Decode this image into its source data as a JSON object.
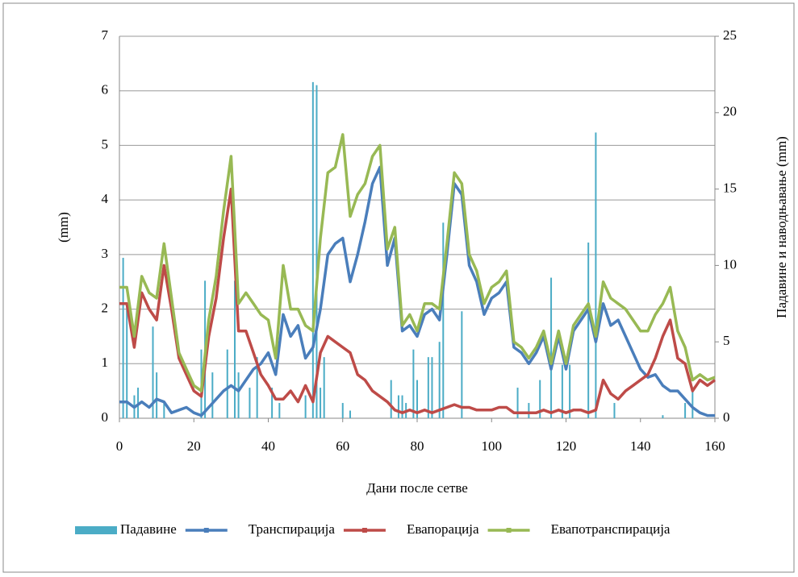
{
  "chart_data": {
    "type": "line",
    "x_label": "Дани после сетве",
    "y_label": "(mm)",
    "y2_label": "Падавине и наводњавање (mm)",
    "xlim": [
      0,
      160
    ],
    "xticks": [
      0,
      20,
      40,
      60,
      80,
      100,
      120,
      140,
      160
    ],
    "ylim": [
      0,
      7
    ],
    "yticks": [
      0,
      1,
      2,
      3,
      4,
      5,
      6,
      7
    ],
    "y2lim": [
      0,
      25
    ],
    "y2ticks": [
      0,
      5,
      10,
      15,
      20,
      25
    ],
    "grid": true,
    "legend": "bottom",
    "x": [
      0,
      2,
      4,
      6,
      8,
      10,
      12,
      14,
      16,
      18,
      20,
      22,
      24,
      26,
      28,
      30,
      32,
      34,
      36,
      38,
      40,
      42,
      44,
      46,
      48,
      50,
      52,
      54,
      56,
      58,
      60,
      62,
      64,
      66,
      68,
      70,
      72,
      74,
      76,
      78,
      80,
      82,
      84,
      86,
      88,
      90,
      92,
      94,
      96,
      98,
      100,
      102,
      104,
      106,
      108,
      110,
      112,
      114,
      116,
      118,
      120,
      122,
      124,
      126,
      128,
      130,
      132,
      134,
      136,
      138,
      140,
      142,
      144,
      146,
      148,
      150,
      152,
      154,
      156,
      158,
      160
    ],
    "series": [
      {
        "name": "Падавине",
        "color": "#4bacc6",
        "type": "bar",
        "axis": "y2",
        "x": [
          1,
          2,
          4,
          5,
          9,
          10,
          12,
          22,
          23,
          25,
          29,
          31,
          32,
          35,
          37,
          41,
          43,
          50,
          52,
          53,
          54,
          55,
          60,
          62,
          73,
          75,
          76,
          77,
          79,
          80,
          83,
          84,
          86,
          87,
          92,
          107,
          110,
          113,
          116,
          119,
          121,
          126,
          128,
          133,
          146,
          152,
          154
        ],
        "values": [
          10.5,
          7.5,
          1.5,
          2,
          6,
          3,
          1,
          4.5,
          9,
          3,
          4.5,
          9,
          3,
          2,
          4,
          2,
          1,
          1.5,
          22,
          21.8,
          2,
          4,
          1,
          0.5,
          2.5,
          1.5,
          1.5,
          1,
          4.5,
          2.5,
          4,
          4,
          5,
          12.8,
          7,
          2,
          1,
          2.5,
          9.2,
          3.5,
          3.5,
          11.5,
          18.7,
          1,
          0.2,
          1,
          2
        ]
      },
      {
        "name": "Транспирација",
        "color": "#4a7ebb",
        "values": [
          0.3,
          0.3,
          0.2,
          0.3,
          0.2,
          0.35,
          0.3,
          0.1,
          0.15,
          0.2,
          0.1,
          0.05,
          0.2,
          0.35,
          0.5,
          0.6,
          0.5,
          0.7,
          0.9,
          1.0,
          1.2,
          0.8,
          1.9,
          1.5,
          1.7,
          1.1,
          1.3,
          2.0,
          3.0,
          3.2,
          3.3,
          2.5,
          3.0,
          3.6,
          4.3,
          4.6,
          2.8,
          3.3,
          1.6,
          1.7,
          1.5,
          1.9,
          2.0,
          1.8,
          3.0,
          4.3,
          4.1,
          2.8,
          2.5,
          1.9,
          2.2,
          2.3,
          2.5,
          1.3,
          1.2,
          1.0,
          1.2,
          1.5,
          0.9,
          1.5,
          0.9,
          1.6,
          1.8,
          2.0,
          1.4,
          2.1,
          1.7,
          1.8,
          1.5,
          1.2,
          0.9,
          0.75,
          0.8,
          0.6,
          0.5,
          0.5,
          0.35,
          0.2,
          0.1,
          0.05,
          0.05
        ]
      },
      {
        "name": "Евапорација",
        "color": "#be4b48",
        "values": [
          2.1,
          2.1,
          1.3,
          2.3,
          2.0,
          1.8,
          2.8,
          2.0,
          1.1,
          0.8,
          0.5,
          0.4,
          1.5,
          2.2,
          3.3,
          4.2,
          1.6,
          1.6,
          1.2,
          0.8,
          0.6,
          0.35,
          0.35,
          0.5,
          0.3,
          0.6,
          0.3,
          1.2,
          1.5,
          1.4,
          1.3,
          1.2,
          0.8,
          0.7,
          0.5,
          0.4,
          0.3,
          0.15,
          0.1,
          0.15,
          0.1,
          0.15,
          0.1,
          0.15,
          0.2,
          0.25,
          0.2,
          0.2,
          0.15,
          0.15,
          0.15,
          0.2,
          0.2,
          0.1,
          0.1,
          0.1,
          0.1,
          0.15,
          0.1,
          0.15,
          0.1,
          0.15,
          0.15,
          0.1,
          0.15,
          0.7,
          0.45,
          0.35,
          0.5,
          0.6,
          0.7,
          0.8,
          1.1,
          1.5,
          1.8,
          1.1,
          1.0,
          0.5,
          0.7,
          0.6,
          0.7
        ]
      },
      {
        "name": "Евапотранспирација",
        "color": "#98b954",
        "values": [
          2.4,
          2.4,
          1.5,
          2.6,
          2.3,
          2.2,
          3.2,
          2.2,
          1.2,
          0.9,
          0.6,
          0.5,
          1.8,
          2.6,
          3.8,
          4.8,
          2.1,
          2.3,
          2.1,
          1.9,
          1.8,
          1.1,
          2.8,
          2.0,
          2.0,
          1.7,
          1.6,
          3.3,
          4.5,
          4.6,
          5.2,
          3.7,
          4.1,
          4.3,
          4.8,
          5.0,
          3.1,
          3.5,
          1.7,
          1.9,
          1.6,
          2.1,
          2.1,
          2.0,
          3.2,
          4.5,
          4.3,
          3.0,
          2.7,
          2.1,
          2.4,
          2.5,
          2.7,
          1.4,
          1.3,
          1.1,
          1.3,
          1.6,
          1.0,
          1.6,
          1.0,
          1.7,
          1.9,
          2.1,
          1.5,
          2.5,
          2.2,
          2.1,
          2.0,
          1.8,
          1.6,
          1.6,
          1.9,
          2.1,
          2.4,
          1.6,
          1.3,
          0.7,
          0.8,
          0.7,
          0.75
        ]
      }
    ]
  }
}
